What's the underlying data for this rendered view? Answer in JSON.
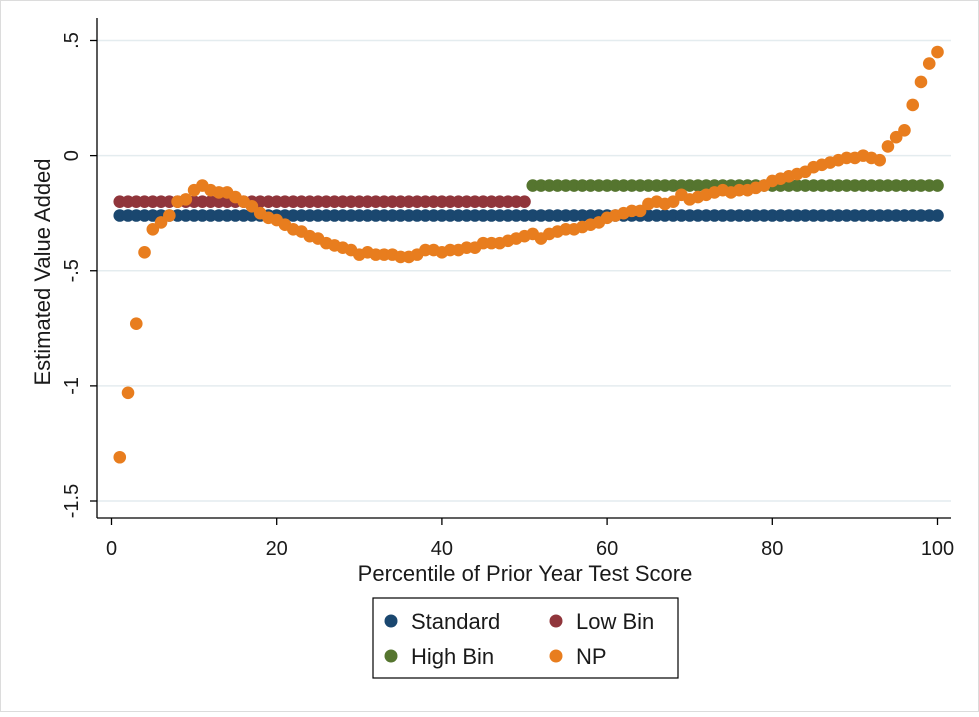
{
  "chart_data": {
    "type": "scatter",
    "title": "",
    "xlabel": "Percentile of Prior Year Test Score",
    "ylabel": "Estimated Value Added",
    "xlim": [
      0,
      100
    ],
    "ylim": [
      -1.5,
      0.5
    ],
    "x_ticks": [
      {
        "value": 0,
        "label": "0"
      },
      {
        "value": 20,
        "label": "20"
      },
      {
        "value": 40,
        "label": "40"
      },
      {
        "value": 60,
        "label": "60"
      },
      {
        "value": 80,
        "label": "80"
      },
      {
        "value": 100,
        "label": "100"
      }
    ],
    "y_ticks": [
      {
        "value": 0.5,
        "label": ".5"
      },
      {
        "value": 0,
        "label": "0"
      },
      {
        "value": -0.5,
        "label": "-.5"
      },
      {
        "value": -1,
        "label": "-1"
      },
      {
        "value": -1.5,
        "label": "-1.5"
      }
    ],
    "grid": true,
    "legend_position": "bottom",
    "series": [
      {
        "name": "Standard",
        "color": "#1a476f",
        "x": [
          1,
          2,
          3,
          4,
          5,
          6,
          7,
          8,
          9,
          10,
          11,
          12,
          13,
          14,
          15,
          16,
          17,
          18,
          19,
          20,
          21,
          22,
          23,
          24,
          25,
          26,
          27,
          28,
          29,
          30,
          31,
          32,
          33,
          34,
          35,
          36,
          37,
          38,
          39,
          40,
          41,
          42,
          43,
          44,
          45,
          46,
          47,
          48,
          49,
          50,
          51,
          52,
          53,
          54,
          55,
          56,
          57,
          58,
          59,
          60,
          61,
          62,
          63,
          64,
          65,
          66,
          67,
          68,
          69,
          70,
          71,
          72,
          73,
          74,
          75,
          76,
          77,
          78,
          79,
          80,
          81,
          82,
          83,
          84,
          85,
          86,
          87,
          88,
          89,
          90,
          91,
          92,
          93,
          94,
          95,
          96,
          97,
          98,
          99,
          100
        ],
        "y": [
          -0.26,
          -0.26,
          -0.26,
          -0.26,
          -0.26,
          -0.26,
          -0.26,
          -0.26,
          -0.26,
          -0.26,
          -0.26,
          -0.26,
          -0.26,
          -0.26,
          -0.26,
          -0.26,
          -0.26,
          -0.26,
          -0.26,
          -0.26,
          -0.26,
          -0.26,
          -0.26,
          -0.26,
          -0.26,
          -0.26,
          -0.26,
          -0.26,
          -0.26,
          -0.26,
          -0.26,
          -0.26,
          -0.26,
          -0.26,
          -0.26,
          -0.26,
          -0.26,
          -0.26,
          -0.26,
          -0.26,
          -0.26,
          -0.26,
          -0.26,
          -0.26,
          -0.26,
          -0.26,
          -0.26,
          -0.26,
          -0.26,
          -0.26,
          -0.26,
          -0.26,
          -0.26,
          -0.26,
          -0.26,
          -0.26,
          -0.26,
          -0.26,
          -0.26,
          -0.26,
          -0.26,
          -0.26,
          -0.26,
          -0.26,
          -0.26,
          -0.26,
          -0.26,
          -0.26,
          -0.26,
          -0.26,
          -0.26,
          -0.26,
          -0.26,
          -0.26,
          -0.26,
          -0.26,
          -0.26,
          -0.26,
          -0.26,
          -0.26,
          -0.26,
          -0.26,
          -0.26,
          -0.26,
          -0.26,
          -0.26,
          -0.26,
          -0.26,
          -0.26,
          -0.26,
          -0.26,
          -0.26,
          -0.26,
          -0.26,
          -0.26,
          -0.26,
          -0.26,
          -0.26,
          -0.26,
          -0.26
        ]
      },
      {
        "name": "Low Bin",
        "color": "#90353b",
        "x": [
          1,
          2,
          3,
          4,
          5,
          6,
          7,
          8,
          9,
          10,
          11,
          12,
          13,
          14,
          15,
          16,
          17,
          18,
          19,
          20,
          21,
          22,
          23,
          24,
          25,
          26,
          27,
          28,
          29,
          30,
          31,
          32,
          33,
          34,
          35,
          36,
          37,
          38,
          39,
          40,
          41,
          42,
          43,
          44,
          45,
          46,
          47,
          48,
          49,
          50
        ],
        "y": [
          -0.2,
          -0.2,
          -0.2,
          -0.2,
          -0.2,
          -0.2,
          -0.2,
          -0.2,
          -0.2,
          -0.2,
          -0.2,
          -0.2,
          -0.2,
          -0.2,
          -0.2,
          -0.2,
          -0.2,
          -0.2,
          -0.2,
          -0.2,
          -0.2,
          -0.2,
          -0.2,
          -0.2,
          -0.2,
          -0.2,
          -0.2,
          -0.2,
          -0.2,
          -0.2,
          -0.2,
          -0.2,
          -0.2,
          -0.2,
          -0.2,
          -0.2,
          -0.2,
          -0.2,
          -0.2,
          -0.2,
          -0.2,
          -0.2,
          -0.2,
          -0.2,
          -0.2,
          -0.2,
          -0.2,
          -0.2,
          -0.2,
          -0.2
        ]
      },
      {
        "name": "High Bin",
        "color": "#55752f",
        "x": [
          51,
          52,
          53,
          54,
          55,
          56,
          57,
          58,
          59,
          60,
          61,
          62,
          63,
          64,
          65,
          66,
          67,
          68,
          69,
          70,
          71,
          72,
          73,
          74,
          75,
          76,
          77,
          78,
          79,
          80,
          81,
          82,
          83,
          84,
          85,
          86,
          87,
          88,
          89,
          90,
          91,
          92,
          93,
          94,
          95,
          96,
          97,
          98,
          99,
          100
        ],
        "y": [
          -0.13,
          -0.13,
          -0.13,
          -0.13,
          -0.13,
          -0.13,
          -0.13,
          -0.13,
          -0.13,
          -0.13,
          -0.13,
          -0.13,
          -0.13,
          -0.13,
          -0.13,
          -0.13,
          -0.13,
          -0.13,
          -0.13,
          -0.13,
          -0.13,
          -0.13,
          -0.13,
          -0.13,
          -0.13,
          -0.13,
          -0.13,
          -0.13,
          -0.13,
          -0.13,
          -0.13,
          -0.13,
          -0.13,
          -0.13,
          -0.13,
          -0.13,
          -0.13,
          -0.13,
          -0.13,
          -0.13,
          -0.13,
          -0.13,
          -0.13,
          -0.13,
          -0.13,
          -0.13,
          -0.13,
          -0.13,
          -0.13,
          -0.13
        ]
      },
      {
        "name": "NP",
        "color": "#e87d1e",
        "x": [
          1,
          2,
          3,
          4,
          5,
          6,
          7,
          8,
          9,
          10,
          11,
          12,
          13,
          14,
          15,
          16,
          17,
          18,
          19,
          20,
          21,
          22,
          23,
          24,
          25,
          26,
          27,
          28,
          29,
          30,
          31,
          32,
          33,
          34,
          35,
          36,
          37,
          38,
          39,
          40,
          41,
          42,
          43,
          44,
          45,
          46,
          47,
          48,
          49,
          50,
          51,
          52,
          53,
          54,
          55,
          56,
          57,
          58,
          59,
          60,
          61,
          62,
          63,
          64,
          65,
          66,
          67,
          68,
          69,
          70,
          71,
          72,
          73,
          74,
          75,
          76,
          77,
          78,
          79,
          80,
          81,
          82,
          83,
          84,
          85,
          86,
          87,
          88,
          89,
          90,
          91,
          92,
          93,
          94,
          95,
          96,
          97,
          98,
          99,
          100
        ],
        "y": [
          -1.31,
          -1.03,
          -0.73,
          -0.42,
          -0.32,
          -0.29,
          -0.26,
          -0.2,
          -0.19,
          -0.15,
          -0.13,
          -0.15,
          -0.16,
          -0.16,
          -0.18,
          -0.2,
          -0.22,
          -0.25,
          -0.27,
          -0.28,
          -0.3,
          -0.32,
          -0.33,
          -0.35,
          -0.36,
          -0.38,
          -0.39,
          -0.4,
          -0.41,
          -0.43,
          -0.42,
          -0.43,
          -0.43,
          -0.43,
          -0.44,
          -0.44,
          -0.43,
          -0.41,
          -0.41,
          -0.42,
          -0.41,
          -0.41,
          -0.4,
          -0.4,
          -0.38,
          -0.38,
          -0.38,
          -0.37,
          -0.36,
          -0.35,
          -0.34,
          -0.36,
          -0.34,
          -0.33,
          -0.32,
          -0.32,
          -0.31,
          -0.3,
          -0.29,
          -0.27,
          -0.26,
          -0.25,
          -0.24,
          -0.24,
          -0.21,
          -0.2,
          -0.21,
          -0.2,
          -0.17,
          -0.19,
          -0.18,
          -0.17,
          -0.16,
          -0.15,
          -0.16,
          -0.15,
          -0.15,
          -0.14,
          -0.13,
          -0.11,
          -0.1,
          -0.09,
          -0.08,
          -0.07,
          -0.05,
          -0.04,
          -0.03,
          -0.02,
          -0.01,
          -0.01,
          0.0,
          -0.01,
          -0.02,
          0.04,
          0.08,
          0.11,
          0.22,
          0.32,
          0.4,
          0.45
        ]
      }
    ]
  }
}
